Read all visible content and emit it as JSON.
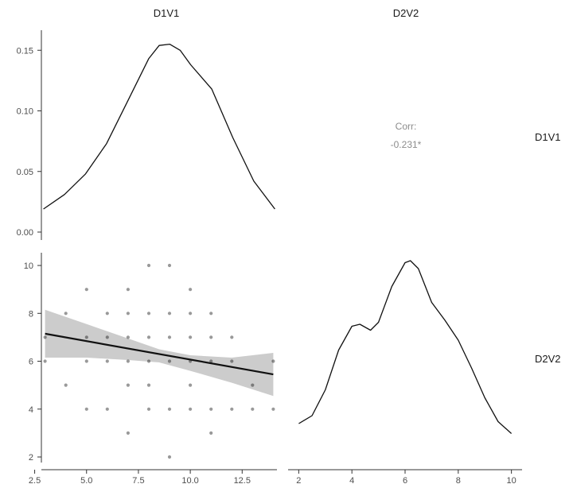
{
  "chart_data": {
    "type": "scatter",
    "variables": [
      "D1V1",
      "D2V2"
    ],
    "panels": {
      "d1_density": {
        "type": "line",
        "ylim": [
          0,
          0.16
        ],
        "xlim": [
          2.9,
          14.1
        ],
        "y_ticks": [
          "0.00",
          "0.05",
          "0.10",
          "0.15"
        ],
        "x": [
          3,
          4,
          5,
          6,
          7,
          8,
          8.5,
          9,
          9.5,
          10,
          11,
          12,
          13,
          14
        ],
        "y": [
          0.019,
          0.031,
          0.048,
          0.073,
          0.108,
          0.143,
          0.154,
          0.155,
          0.15,
          0.138,
          0.118,
          0.078,
          0.042,
          0.019
        ]
      },
      "correlation": {
        "label": "Corr:",
        "value": "-0.231*"
      },
      "scatter": {
        "type": "scatter",
        "xlim": [
          2.9,
          14.1
        ],
        "ylim": [
          1.9,
          10.4
        ],
        "x_ticks": [
          "2.5",
          "5.0",
          "7.5",
          "10.0",
          "12.5"
        ],
        "y_ticks": [
          "2",
          "4",
          "6",
          "8",
          "10"
        ],
        "points": [
          [
            3,
            7
          ],
          [
            3,
            6
          ],
          [
            4,
            8
          ],
          [
            4,
            5
          ],
          [
            5,
            9
          ],
          [
            5,
            7
          ],
          [
            5,
            6
          ],
          [
            5,
            4
          ],
          [
            6,
            8
          ],
          [
            6,
            7
          ],
          [
            6,
            6
          ],
          [
            6,
            4
          ],
          [
            7,
            9
          ],
          [
            7,
            8
          ],
          [
            7,
            7
          ],
          [
            7,
            6
          ],
          [
            7,
            5
          ],
          [
            7,
            3
          ],
          [
            8,
            10
          ],
          [
            8,
            8
          ],
          [
            8,
            7
          ],
          [
            8,
            6
          ],
          [
            8,
            5
          ],
          [
            8,
            4
          ],
          [
            9,
            10
          ],
          [
            9,
            8
          ],
          [
            9,
            7
          ],
          [
            9,
            6
          ],
          [
            9,
            4
          ],
          [
            9,
            2
          ],
          [
            10,
            9
          ],
          [
            10,
            8
          ],
          [
            10,
            7
          ],
          [
            10,
            6
          ],
          [
            10,
            5
          ],
          [
            10,
            4
          ],
          [
            11,
            8
          ],
          [
            11,
            7
          ],
          [
            11,
            6
          ],
          [
            11,
            4
          ],
          [
            11,
            3
          ],
          [
            12,
            7
          ],
          [
            12,
            6
          ],
          [
            12,
            4
          ],
          [
            13,
            5
          ],
          [
            13,
            4
          ],
          [
            14,
            6
          ],
          [
            14,
            4
          ]
        ],
        "fit": {
          "x0": 3,
          "x1": 14,
          "y0": 7.15,
          "y1": 5.45
        },
        "band": {
          "x": [
            3,
            5,
            7,
            8.5,
            10,
            12,
            14
          ],
          "upper": [
            8.15,
            7.55,
            6.95,
            6.5,
            6.25,
            6.15,
            6.35
          ],
          "lower": [
            6.15,
            6.15,
            6.05,
            5.95,
            5.6,
            5.1,
            4.55
          ]
        }
      },
      "d2_density": {
        "type": "line",
        "xlim": [
          1.6,
          10.4
        ],
        "x_ticks": [
          "2",
          "4",
          "6",
          "8",
          "10"
        ],
        "x": [
          2,
          2.5,
          3,
          3.5,
          4,
          4.3,
          4.7,
          5,
          5.5,
          6,
          6.2,
          6.5,
          7,
          7.5,
          8,
          8.5,
          9,
          9.5,
          10
        ],
        "y": [
          0.18,
          0.22,
          0.35,
          0.55,
          0.67,
          0.68,
          0.65,
          0.69,
          0.87,
          0.99,
          1.0,
          0.96,
          0.79,
          0.7,
          0.6,
          0.46,
          0.31,
          0.19,
          0.13
        ]
      }
    },
    "colors": {
      "line": "#111111",
      "band": "#cccccc",
      "point": "#000000",
      "axis": "#333333",
      "text": "#4d4d4d",
      "corr": "#8c8c8c"
    }
  }
}
